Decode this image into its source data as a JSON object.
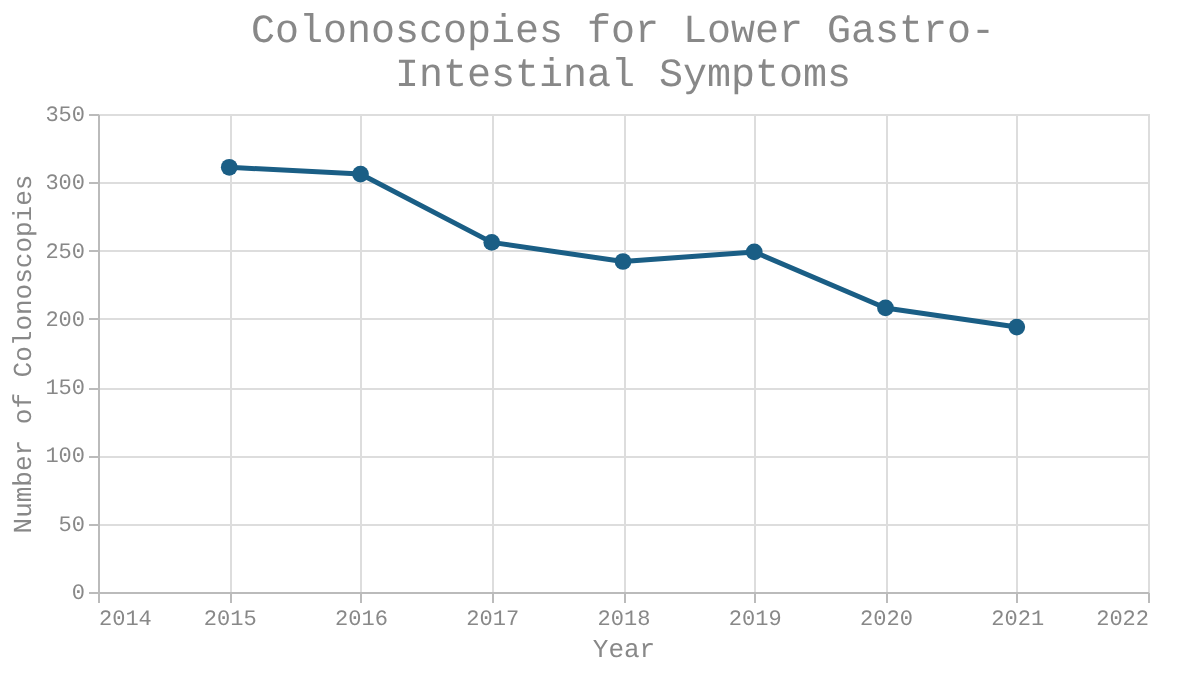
{
  "chart_data": {
    "type": "line",
    "title": [
      "Colonoscopies for Lower Gastro-",
      "Intestinal Symptoms"
    ],
    "xlabel": "Year",
    "ylabel": "Number of Colonoscopies",
    "x": [
      2015,
      2016,
      2017,
      2018,
      2019,
      2020,
      2021
    ],
    "series": [
      {
        "color": "#1a5e85",
        "values": [
          311,
          306,
          256,
          242,
          249,
          208,
          194
        ]
      }
    ],
    "xlim": [
      2014,
      2022
    ],
    "xticks": [
      2014,
      2015,
      2016,
      2017,
      2018,
      2019,
      2020,
      2021,
      2022
    ],
    "ylim": [
      0,
      350
    ],
    "yticks": [
      0,
      50,
      100,
      150,
      200,
      250,
      300,
      350
    ],
    "grid": true,
    "marker": "circle",
    "line_style": "solid"
  }
}
